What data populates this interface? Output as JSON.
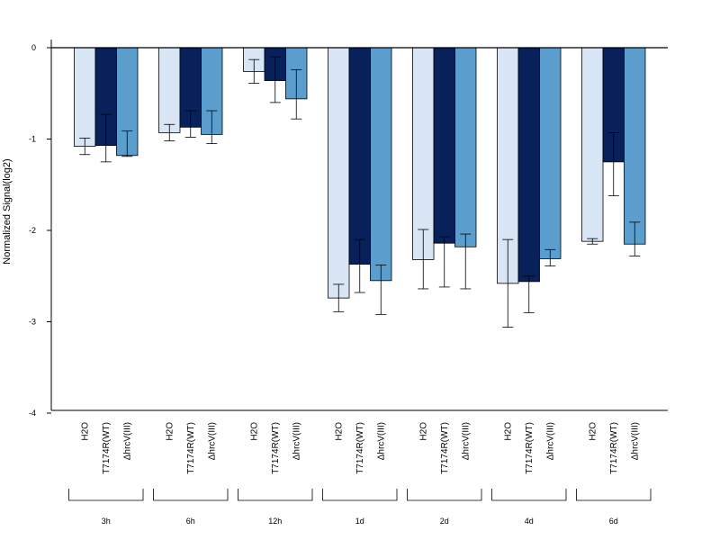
{
  "chart_data": {
    "type": "bar",
    "ylabel": "Normalized Signal(log2)",
    "ylim": [
      -4,
      0
    ],
    "yticks": [
      0,
      -1,
      -2,
      -3,
      -4
    ],
    "ytick_labels": [
      "0",
      "-1",
      "-2",
      "-3",
      "-4"
    ],
    "treatments": [
      "H2O",
      "T7174R(WT)",
      "ΔhrcV(III)"
    ],
    "groups": [
      "3h",
      "6h",
      "12h",
      "1d",
      "2d",
      "4d",
      "6d"
    ],
    "series": [
      {
        "treatment": "H2O",
        "color": "#d7e5f5",
        "values": [
          -1.08,
          -0.93,
          -0.26,
          -2.74,
          -2.32,
          -2.58,
          -2.12
        ],
        "err_low": [
          -1.17,
          -1.02,
          -0.39,
          -2.89,
          -2.64,
          -3.06,
          -2.15
        ],
        "err_high": [
          -0.99,
          -0.84,
          -0.13,
          -2.59,
          -1.99,
          -2.1,
          -2.09
        ]
      },
      {
        "treatment": "T7174R(WT)",
        "color": "#08215a",
        "values": [
          -1.07,
          -0.87,
          -0.36,
          -2.37,
          -2.14,
          -2.56,
          -1.25
        ],
        "err_low": [
          -1.25,
          -0.98,
          -0.6,
          -2.68,
          -2.62,
          -2.9,
          -1.62
        ],
        "err_high": [
          -0.73,
          -0.69,
          -0.1,
          -2.1,
          -2.07,
          -2.5,
          -0.93
        ]
      },
      {
        "treatment": "ΔhrcV(III)",
        "color": "#5b9ecd",
        "values": [
          -1.18,
          -0.95,
          -0.56,
          -2.55,
          -2.18,
          -2.31,
          -2.15
        ],
        "err_low": [
          -1.19,
          -1.05,
          -0.78,
          -2.92,
          -2.64,
          -2.39,
          -2.28
        ],
        "err_high": [
          -0.91,
          -0.69,
          -0.24,
          -2.38,
          -2.04,
          -2.21,
          -1.91
        ]
      }
    ]
  }
}
